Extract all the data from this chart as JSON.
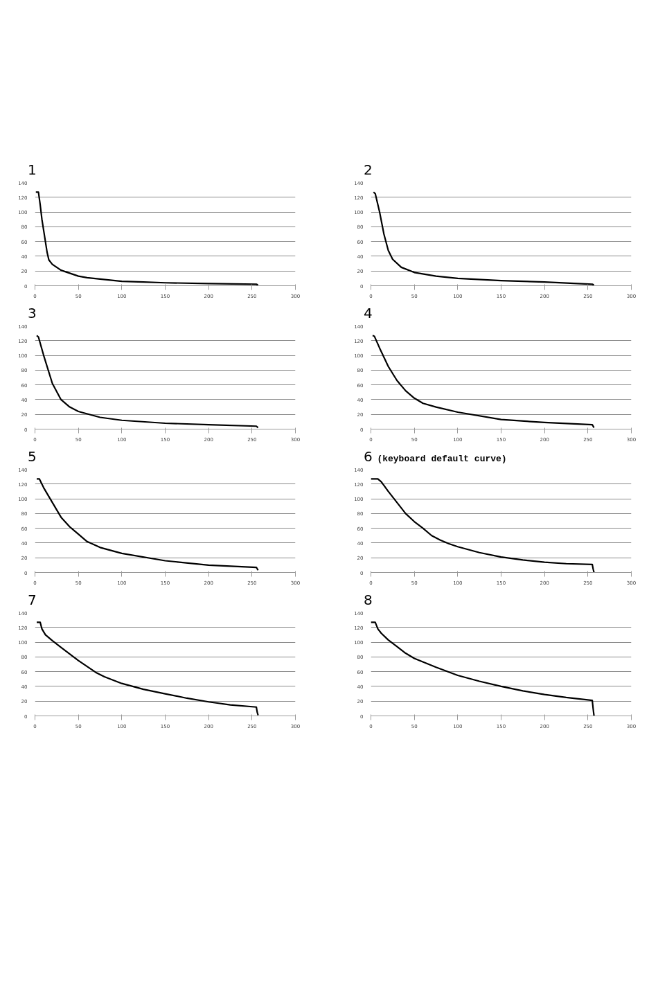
{
  "chart_data": [
    {
      "type": "line",
      "title": "1",
      "color": "#000000",
      "x": [
        1,
        4,
        6,
        8,
        10,
        12,
        14,
        16,
        20,
        25,
        30,
        40,
        50,
        60,
        75,
        100,
        125,
        150,
        200,
        255,
        257
      ],
      "values": [
        127,
        127,
        110,
        90,
        75,
        60,
        45,
        35,
        29,
        25,
        21,
        17,
        13,
        11,
        9,
        6,
        5,
        4,
        3,
        2,
        1
      ],
      "xlim": [
        0,
        300
      ],
      "ylim": [
        0,
        140
      ],
      "xticks": [
        0,
        50,
        100,
        150,
        200,
        250,
        300
      ],
      "yticks": [
        0,
        20,
        40,
        60,
        80,
        100,
        120,
        140
      ],
      "grid": "y"
    },
    {
      "type": "line",
      "title": "2",
      "color": "#000000",
      "x": [
        3,
        5,
        10,
        15,
        20,
        25,
        35,
        50,
        75,
        100,
        150,
        200,
        255,
        257
      ],
      "values": [
        127,
        125,
        100,
        70,
        48,
        36,
        25,
        18,
        13,
        10,
        7,
        5,
        2,
        1
      ],
      "xlim": [
        0,
        300
      ],
      "ylim": [
        0,
        140
      ],
      "xticks": [
        0,
        50,
        100,
        150,
        200,
        250,
        300
      ],
      "yticks": [
        0,
        20,
        40,
        60,
        80,
        100,
        120,
        140
      ],
      "grid": "y"
    },
    {
      "type": "line",
      "title": "3",
      "color": "#000000",
      "x": [
        2,
        4,
        10,
        20,
        30,
        40,
        50,
        75,
        100,
        150,
        200,
        255,
        257
      ],
      "values": [
        127,
        125,
        100,
        62,
        40,
        30,
        24,
        16,
        12,
        8,
        6,
        4,
        2
      ],
      "xlim": [
        0,
        300
      ],
      "ylim": [
        0,
        140
      ],
      "xticks": [
        0,
        50,
        100,
        150,
        200,
        250,
        300
      ],
      "yticks": [
        0,
        20,
        40,
        60,
        80,
        100,
        120,
        140
      ],
      "grid": "y"
    },
    {
      "type": "line",
      "title": "4",
      "color": "#000000",
      "x": [
        2,
        4,
        10,
        20,
        30,
        40,
        50,
        60,
        75,
        100,
        150,
        200,
        255,
        257
      ],
      "values": [
        127,
        126,
        110,
        85,
        66,
        52,
        42,
        35,
        30,
        23,
        13,
        9,
        6,
        2
      ],
      "xlim": [
        0,
        300
      ],
      "ylim": [
        0,
        140
      ],
      "xticks": [
        0,
        50,
        100,
        150,
        200,
        250,
        300
      ],
      "yticks": [
        0,
        20,
        40,
        60,
        80,
        100,
        120,
        140
      ],
      "grid": "y"
    },
    {
      "type": "line",
      "title": "5",
      "color": "#000000",
      "x": [
        2,
        5,
        10,
        20,
        30,
        40,
        50,
        60,
        75,
        100,
        150,
        200,
        255,
        257
      ],
      "values": [
        127,
        127,
        115,
        95,
        75,
        62,
        52,
        42,
        34,
        26,
        16,
        10,
        7,
        3
      ],
      "xlim": [
        0,
        300
      ],
      "ylim": [
        0,
        140
      ],
      "xticks": [
        0,
        50,
        100,
        150,
        200,
        250,
        300
      ],
      "yticks": [
        0,
        20,
        40,
        60,
        80,
        100,
        120,
        140
      ],
      "grid": "y"
    },
    {
      "type": "line",
      "title": "6",
      "subtitle": "(keyboard default curve)",
      "color": "#000000",
      "x": [
        0,
        8,
        12,
        20,
        30,
        40,
        50,
        60,
        70,
        80,
        90,
        100,
        125,
        150,
        175,
        200,
        225,
        255,
        256,
        257
      ],
      "values": [
        127,
        127,
        123,
        110,
        95,
        80,
        69,
        60,
        50,
        44,
        39,
        35,
        27,
        21,
        17,
        14,
        12,
        11,
        5,
        0
      ],
      "xlim": [
        0,
        300
      ],
      "ylim": [
        0,
        140
      ],
      "xticks": [
        0,
        50,
        100,
        150,
        200,
        250,
        300
      ],
      "yticks": [
        0,
        20,
        40,
        60,
        80,
        100,
        120,
        140
      ],
      "grid": "y"
    },
    {
      "type": "line",
      "title": "7",
      "color": "#000000",
      "x": [
        2,
        6,
        8,
        12,
        20,
        30,
        40,
        50,
        60,
        70,
        80,
        100,
        125,
        150,
        175,
        200,
        225,
        255,
        256,
        257
      ],
      "values": [
        127,
        127,
        118,
        110,
        102,
        93,
        84,
        75,
        67,
        59,
        53,
        44,
        36,
        30,
        24,
        19,
        15,
        12,
        5,
        1
      ],
      "xlim": [
        0,
        300
      ],
      "ylim": [
        0,
        140
      ],
      "xticks": [
        0,
        50,
        100,
        150,
        200,
        250,
        300
      ],
      "yticks": [
        0,
        20,
        40,
        60,
        80,
        100,
        120,
        140
      ],
      "grid": "y"
    },
    {
      "type": "line",
      "title": "8",
      "color": "#000000",
      "x": [
        0,
        5,
        8,
        12,
        20,
        30,
        40,
        50,
        75,
        100,
        125,
        150,
        175,
        200,
        225,
        255,
        256,
        257
      ],
      "values": [
        127,
        127,
        118,
        112,
        103,
        94,
        85,
        78,
        66,
        55,
        47,
        40,
        34,
        29,
        25,
        21,
        10,
        0
      ],
      "xlim": [
        0,
        300
      ],
      "ylim": [
        0,
        140
      ],
      "xticks": [
        0,
        50,
        100,
        150,
        200,
        250,
        300
      ],
      "yticks": [
        0,
        20,
        40,
        60,
        80,
        100,
        120,
        140
      ],
      "grid": "y"
    }
  ]
}
